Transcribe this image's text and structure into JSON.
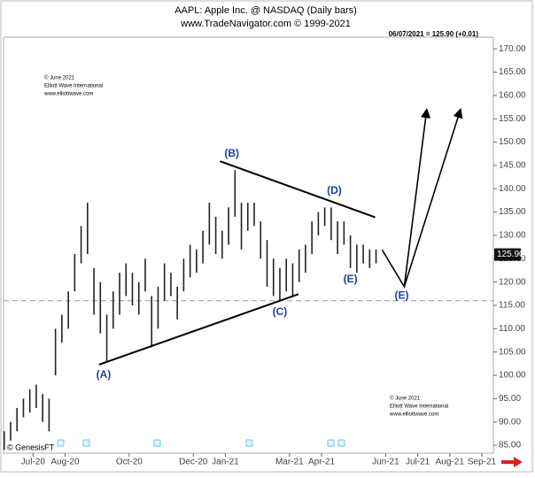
{
  "chart_data": {
    "type": "ohlc",
    "title": "AAPL:  Apple Inc. @ NASDAQ  (Daily bars)",
    "subtitle": "www.TradeNavigator.com © 1999-2021",
    "quote": "06/07/2021 = 125.90 (+0.01)",
    "last_price": 125.9,
    "last_price_label": "125.90",
    "watermark": [
      "© June 2021",
      "Elliott Wave International",
      "www.elliottwave.com"
    ],
    "watermark2": [
      "© June 2021",
      "Elliott Wave International",
      "www.elliottwave.com"
    ],
    "source": "© GenesisFT",
    "color": "#222222",
    "ylim": [
      83.3,
      172.5
    ],
    "yticks": [
      {
        "value": 85,
        "label": "85.00"
      },
      {
        "value": 90,
        "label": "90.00"
      },
      {
        "value": 95,
        "label": "95.00"
      },
      {
        "value": 100,
        "label": "100.00"
      },
      {
        "value": 105,
        "label": "105.00"
      },
      {
        "value": 110,
        "label": "110.00"
      },
      {
        "value": 115,
        "label": "115.00"
      },
      {
        "value": 120,
        "label": "120.00"
      },
      {
        "value": 125,
        "label": "125.00"
      },
      {
        "value": 130,
        "label": "130.00"
      },
      {
        "value": 135,
        "label": "135.00"
      },
      {
        "value": 140,
        "label": "140.00"
      },
      {
        "value": 145,
        "label": "145.00"
      },
      {
        "value": 150,
        "label": "150.00"
      },
      {
        "value": 155,
        "label": "155.00"
      },
      {
        "value": 160,
        "label": "160.00"
      },
      {
        "value": 165,
        "label": "165.00"
      },
      {
        "value": 170,
        "label": "170.00"
      }
    ],
    "xlim": [
      5.08,
      20.36
    ],
    "xticks": [
      {
        "value": 6,
        "label": "Jul-20"
      },
      {
        "value": 7,
        "label": "Aug-20"
      },
      {
        "value": 9,
        "label": "Oct-20"
      },
      {
        "value": 11,
        "label": "Dec-20"
      },
      {
        "value": 12,
        "label": "Jan-21"
      },
      {
        "value": 14,
        "label": "Mar-21"
      },
      {
        "value": 15,
        "label": "Apr-21"
      },
      {
        "value": 17,
        "label": "Jun-21"
      },
      {
        "value": 18,
        "label": "Jul-21"
      },
      {
        "value": 19,
        "label": "Aug-21"
      },
      {
        "value": 20,
        "label": "Sep-21"
      }
    ],
    "x": [
      5.1,
      5.3,
      5.5,
      5.7,
      5.9,
      6.1,
      6.3,
      6.5,
      6.7,
      6.9,
      7.1,
      7.3,
      7.5,
      7.7,
      7.9,
      8.1,
      8.3,
      8.5,
      8.7,
      8.9,
      9.1,
      9.3,
      9.5,
      9.7,
      9.9,
      10.1,
      10.3,
      10.5,
      10.7,
      10.9,
      11.1,
      11.3,
      11.5,
      11.7,
      11.9,
      12.1,
      12.3,
      12.5,
      12.7,
      12.9,
      13.1,
      13.3,
      13.5,
      13.7,
      13.9,
      14.1,
      14.3,
      14.5,
      14.7,
      14.9,
      15.1,
      15.3,
      15.5,
      15.7,
      15.9,
      16.1,
      16.3,
      16.5,
      16.7
    ],
    "high": [
      88,
      90,
      93,
      95,
      97,
      98,
      96,
      95,
      110,
      113,
      118,
      126,
      132,
      137,
      123,
      120,
      113,
      118,
      122,
      124,
      122,
      120,
      125,
      117,
      119,
      124,
      122,
      119,
      125,
      128,
      127,
      131,
      137,
      134,
      131,
      136,
      144,
      137,
      137,
      137,
      133,
      129,
      125,
      123,
      125,
      124,
      127,
      128,
      133,
      135,
      136,
      136,
      133,
      133,
      130,
      128,
      128,
      127,
      127
    ],
    "low": [
      84,
      86,
      88,
      91,
      92,
      93,
      90,
      88,
      100,
      107,
      110,
      118,
      124,
      126,
      113,
      109,
      103,
      110,
      113,
      117,
      115,
      113,
      118,
      106,
      110,
      116,
      117,
      112,
      118,
      121,
      122,
      124,
      128,
      126,
      125,
      128,
      134,
      127,
      131,
      132,
      125,
      119,
      117,
      116,
      118,
      117,
      120,
      122,
      126,
      130,
      132,
      129,
      126,
      128,
      123,
      122,
      124,
      123,
      124
    ],
    "reference_line": 116,
    "trendlines": [
      {
        "x": [
          8.06,
          14.28
        ],
        "y": [
          102.3,
          117.4
        ]
      },
      {
        "x": [
          11.83,
          16.67
        ],
        "y": [
          145.9,
          133.9
        ]
      }
    ],
    "projections": [
      {
        "x": [
          16.89,
          17.58,
          18.28
        ],
        "y": [
          126.9,
          119,
          156.9
        ]
      },
      {
        "x": [
          17.58,
          19.33
        ],
        "y": [
          119,
          156.9
        ]
      }
    ],
    "wave_labels": [
      {
        "text": "(A)",
        "x": 8.2,
        "y": 100
      },
      {
        "text": "(B)",
        "x": 12.2,
        "y": 147.5
      },
      {
        "text": "(C)",
        "x": 13.7,
        "y": 113.5
      },
      {
        "text": "(D)",
        "x": 15.4,
        "y": 139.5
      },
      {
        "text": "(E)",
        "x": 15.9,
        "y": 120.5
      },
      {
        "text": "(E)",
        "x": 17.5,
        "y": 117
      }
    ]
  }
}
